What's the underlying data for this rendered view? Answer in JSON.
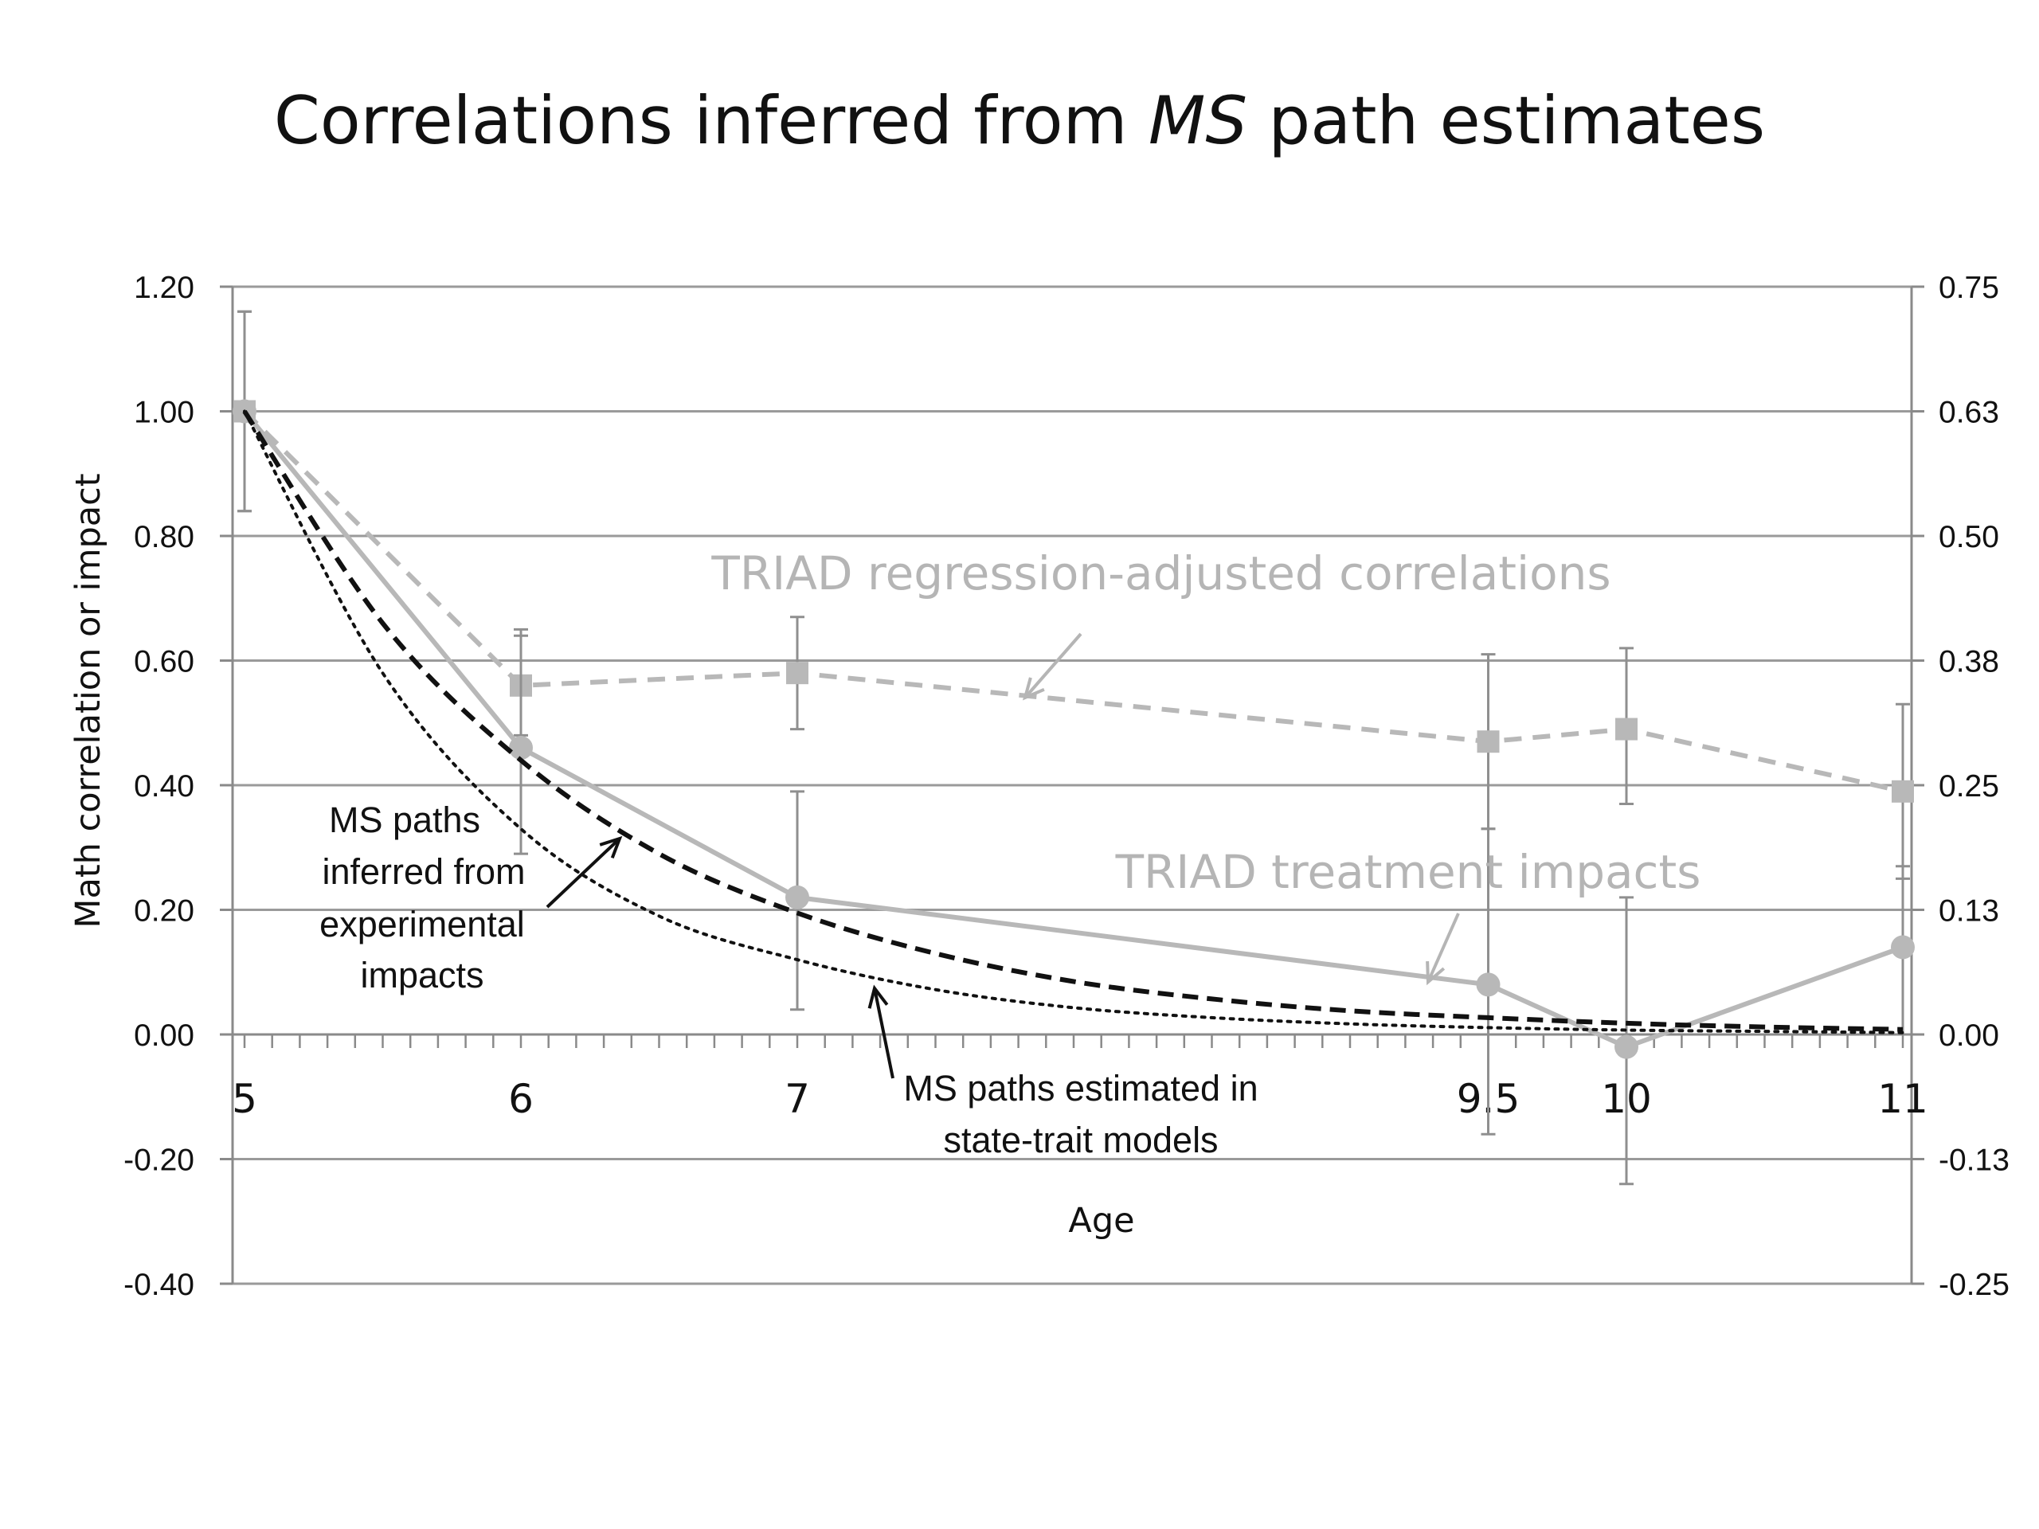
{
  "chart_data": {
    "type": "line",
    "title": {
      "pre": "Correlations inferred from ",
      "italic": "MS",
      "post": " path estimates"
    },
    "xlabel": "Age",
    "ylabel": "Math correlation or impact",
    "x_categories": [
      "5",
      "6",
      "7",
      "9.5",
      "10",
      "11"
    ],
    "ylim": [
      -0.4,
      1.2
    ],
    "y_ticks": [
      "-0.40",
      "-0.20",
      "0.00",
      "0.20",
      "0.40",
      "0.60",
      "0.80",
      "1.00",
      "1.20"
    ],
    "y2_ticks": [
      "-0.25",
      "-0.13",
      "0.00",
      "0.13",
      "0.25",
      "0.38",
      "0.50",
      "0.63",
      "0.75"
    ],
    "grid": true,
    "series": [
      {
        "name": "TRIAD regression-adjusted correlations",
        "style": "dashed-squares",
        "color": "#b8b8b8",
        "x": [
          5,
          6,
          7,
          9.5,
          10,
          11
        ],
        "values": [
          1.0,
          0.56,
          0.58,
          0.47,
          0.49,
          0.39
        ],
        "err_low": [
          0.84,
          0.48,
          0.49,
          0.33,
          0.37,
          0.25
        ],
        "err_high": [
          1.16,
          0.64,
          0.67,
          0.61,
          0.62,
          0.53
        ]
      },
      {
        "name": "TRIAD treatment impacts",
        "style": "solid-circles",
        "color": "#b8b8b8",
        "x": [
          5,
          6,
          7,
          9.5,
          10,
          11
        ],
        "values": [
          1.0,
          0.46,
          0.22,
          0.08,
          -0.02,
          0.14
        ],
        "err_low": [
          0.84,
          0.29,
          0.04,
          -0.16,
          -0.24,
          0.0
        ],
        "err_high": [
          1.16,
          0.65,
          0.39,
          0.33,
          0.22,
          0.27
        ]
      },
      {
        "name": "MS paths inferred from experimental impacts",
        "style": "dashed",
        "color": "#111111",
        "x": [
          5,
          5.5,
          6,
          6.5,
          7,
          7.5,
          8,
          8.5,
          9,
          9.5,
          10,
          10.5,
          11
        ],
        "values": [
          1.0,
          0.66,
          0.44,
          0.29,
          0.195,
          0.13,
          0.085,
          0.057,
          0.038,
          0.027,
          0.018,
          0.012,
          0.008
        ]
      },
      {
        "name": "MS paths estimated in state-trait models",
        "style": "dotted",
        "color": "#111111",
        "x": [
          5,
          5.5,
          6,
          6.5,
          7,
          7.5,
          8,
          8.5,
          9,
          9.5,
          10,
          10.5,
          11
        ],
        "values": [
          1.0,
          0.58,
          0.33,
          0.19,
          0.12,
          0.072,
          0.043,
          0.027,
          0.017,
          0.011,
          0.007,
          0.005,
          0.003
        ]
      }
    ],
    "annotations": {
      "ms_inferred": [
        "MS paths",
        "inferred from",
        "experimental",
        "impacts"
      ],
      "ms_estimated": [
        "MS paths estimated in",
        "state-trait models"
      ],
      "triad_corr": "TRIAD regression-adjusted correlations",
      "triad_impacts": "TRIAD treatment impacts"
    }
  }
}
